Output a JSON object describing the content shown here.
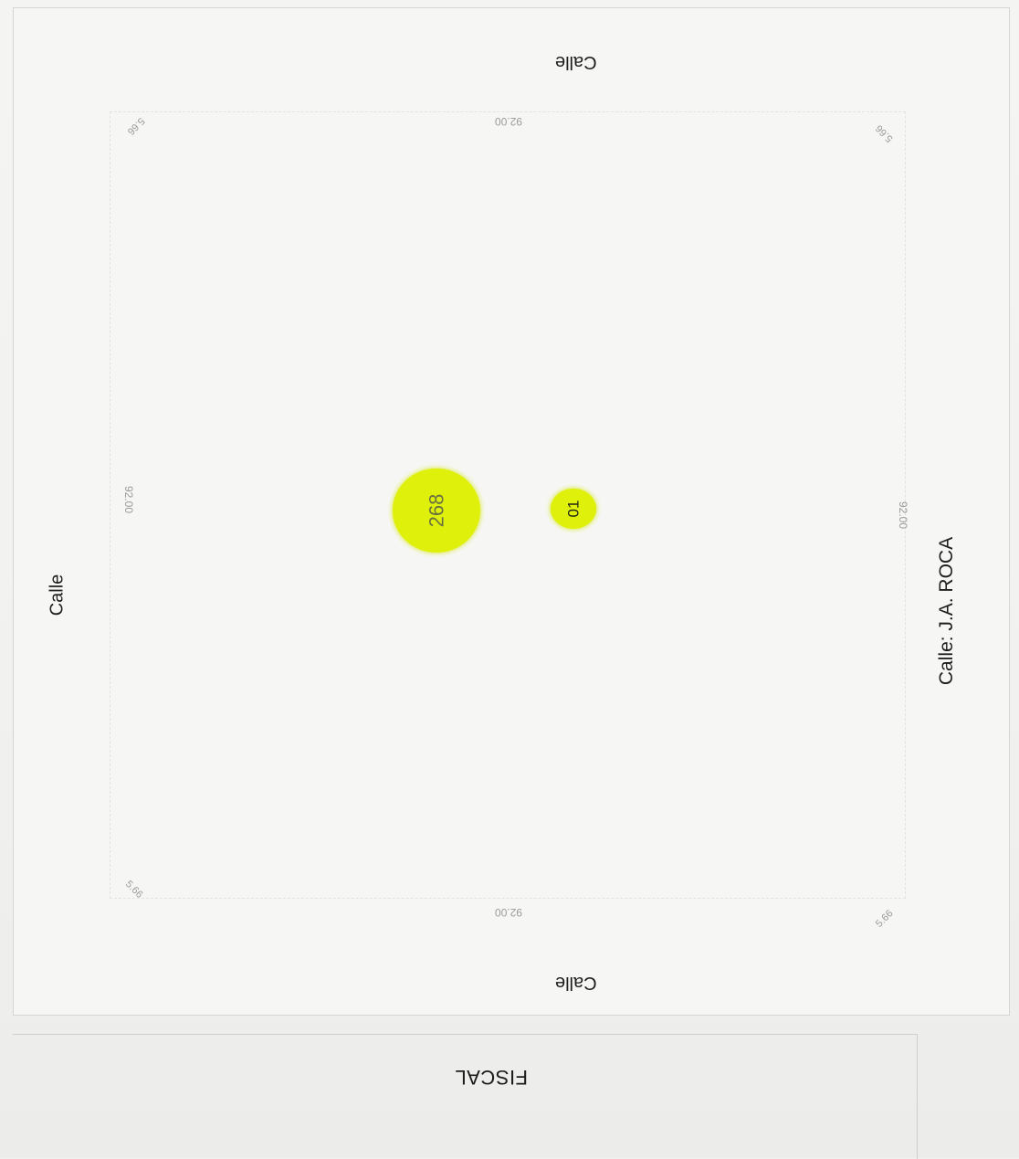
{
  "map": {
    "streets": {
      "top": "Calle",
      "bottom": "Calle",
      "left": "Calle",
      "right": "Calle: J.A. ROCA"
    },
    "dimensions": {
      "top": "92.00",
      "bottom": "92.00",
      "left": "92.00",
      "right": "92.00",
      "corner_top_left": "5.66",
      "corner_top_right": "5.66",
      "corner_bottom_left": "5.66",
      "corner_bottom_right": "5.66"
    },
    "parcels": [
      {
        "label": "268",
        "highlight": "#dff00a"
      },
      {
        "label": "01",
        "highlight": "#dff00a"
      }
    ],
    "footer": "FISCAL"
  }
}
